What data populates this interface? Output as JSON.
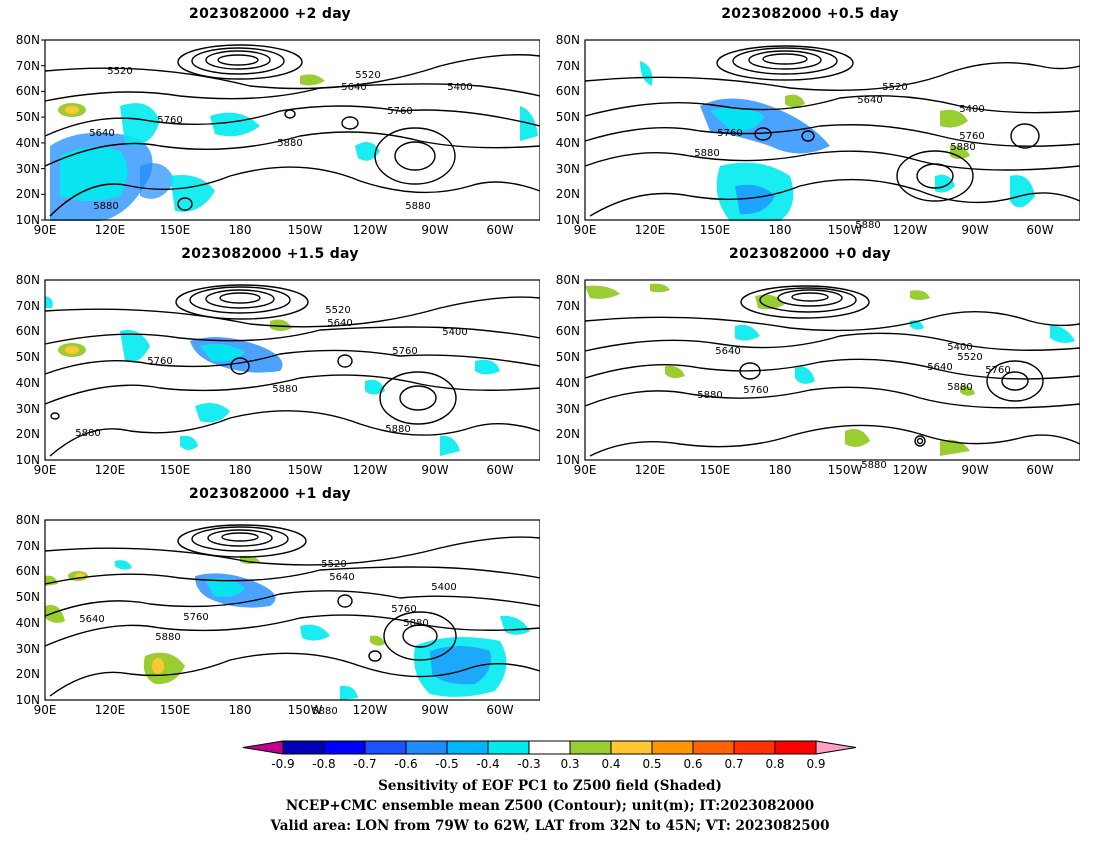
{
  "panels": [
    {
      "title": "2023082000  +2 day",
      "contour_labels": [
        "5520",
        "5520",
        "5640",
        "5400",
        "5640",
        "5760",
        "5760",
        "5880",
        "5880",
        "5880"
      ]
    },
    {
      "title": "2023082000  +0.5 day",
      "contour_labels": [
        "5520",
        "5640",
        "5400",
        "5760",
        "5760",
        "5880",
        "5880",
        "5880"
      ]
    },
    {
      "title": "2023082000  +1.5 day",
      "contour_labels": [
        "5520",
        "5640",
        "5400",
        "5760",
        "5760",
        "5880",
        "5880",
        "5880"
      ]
    },
    {
      "title": "2023082000  +0 day",
      "contour_labels": [
        "5400",
        "5520",
        "5640",
        "5640",
        "5760",
        "5760",
        "5880",
        "5880",
        "5880"
      ]
    },
    {
      "title": "2023082000  +1 day",
      "contour_labels": [
        "5520",
        "5640",
        "5400",
        "5640",
        "5760",
        "5760",
        "5880",
        "5880",
        "5880"
      ]
    }
  ],
  "axes": {
    "lat_labels": [
      "80N",
      "70N",
      "60N",
      "50N",
      "40N",
      "30N",
      "20N",
      "10N"
    ],
    "lon_labels": [
      "90E",
      "120E",
      "150E",
      "180",
      "150W",
      "120W",
      "90W",
      "60W"
    ]
  },
  "colorbar": {
    "tick_labels": [
      "-0.9",
      "-0.8",
      "-0.7",
      "-0.6",
      "-0.5",
      "-0.4",
      "-0.3",
      "0.3",
      "0.4",
      "0.5",
      "0.6",
      "0.7",
      "0.8",
      "0.9"
    ],
    "colors": [
      "#c0008c",
      "#0000b4",
      "#0000ff",
      "#1e50ff",
      "#1e8cff",
      "#00b4ff",
      "#00ebf0",
      "#ffffff",
      "#9acd32",
      "#ffc832",
      "#ff9600",
      "#ff6400",
      "#ff3200",
      "#ff0000",
      "#ffa0c8"
    ]
  },
  "caption": [
    "Sensitivity of EOF PC1 to Z500 field (Shaded)",
    "NCEP+CMC ensemble mean Z500 (Contour); unit(m); IT:2023082000",
    "Valid area: LON from 79W to 62W, LAT from 32N to 45N; VT: 2023082500"
  ]
}
